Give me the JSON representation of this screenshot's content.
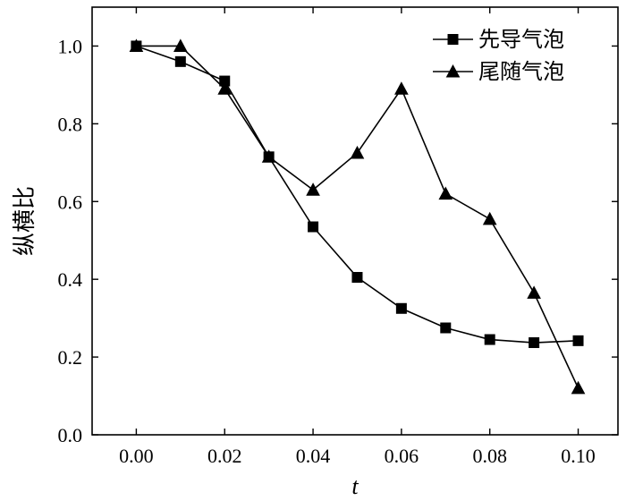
{
  "chart_data": {
    "type": "line",
    "x": [
      0.0,
      0.01,
      0.02,
      0.03,
      0.04,
      0.05,
      0.06,
      0.07,
      0.08,
      0.09,
      0.1
    ],
    "x_ticks": [
      "0.00",
      "0.02",
      "0.04",
      "0.06",
      "0.08",
      "0.10"
    ],
    "x_tick_values": [
      0.0,
      0.02,
      0.04,
      0.06,
      0.08,
      0.1
    ],
    "y_ticks": [
      "0.0",
      "0.2",
      "0.4",
      "0.6",
      "0.8",
      "1.0"
    ],
    "y_tick_values": [
      0.0,
      0.2,
      0.4,
      0.6,
      0.8,
      1.0
    ],
    "xlabel": "t",
    "ylabel": "纵横比",
    "xlim": [
      -0.01,
      0.109
    ],
    "ylim": [
      0.0,
      1.1
    ],
    "grid": false,
    "legend_position": "top-right",
    "series": [
      {
        "name": "先导气泡",
        "marker": "square",
        "color": "#000000",
        "values": [
          1.0,
          0.96,
          0.91,
          0.715,
          0.535,
          0.405,
          0.325,
          0.275,
          0.245,
          0.237,
          0.242
        ]
      },
      {
        "name": "尾随气泡",
        "marker": "triangle",
        "color": "#000000",
        "values": [
          1.0,
          1.0,
          0.89,
          0.715,
          0.63,
          0.725,
          0.89,
          0.62,
          0.555,
          0.365,
          0.12
        ]
      }
    ]
  }
}
